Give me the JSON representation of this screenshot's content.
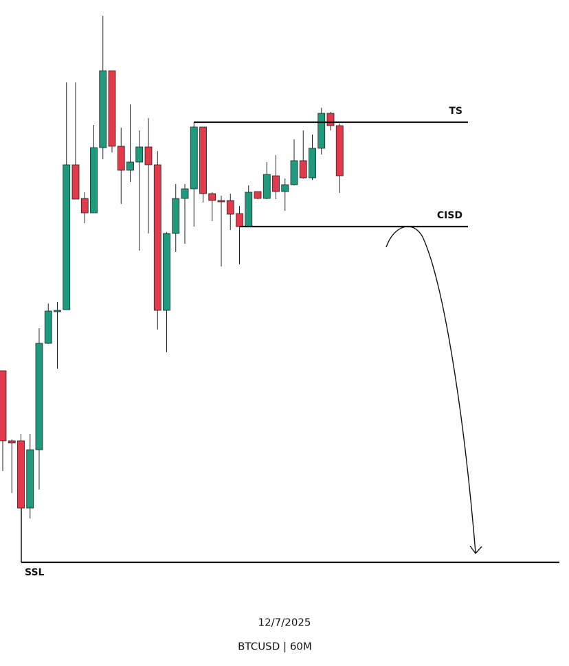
{
  "chart_data": {
    "type": "candlestick",
    "title": "12/7/2025",
    "subtitle": "BTCUSD | 60M",
    "ylim": [
      0,
      970
    ],
    "up_color": "#1f9a7c",
    "down_color": "#e23a4b",
    "open": [
      430,
      328,
      328,
      230,
      315,
      470,
      516,
      519,
      730,
      681,
      660,
      755,
      867,
      757,
      722,
      734,
      756,
      730,
      518,
      630,
      681,
      695,
      785,
      688,
      678,
      678,
      659,
      640,
      691,
      681,
      714,
      691,
      701,
      736,
      711,
      754,
      805,
      787
    ],
    "high": [
      430,
      330,
      338,
      338,
      492,
      528,
      530,
      850,
      850,
      690,
      788,
      947,
      867,
      784,
      818,
      780,
      798,
      750,
      632,
      702,
      702,
      792,
      785,
      690,
      685,
      688,
      670,
      700,
      691,
      734,
      744,
      710,
      767,
      780,
      774,
      813,
      807,
      790
    ],
    "low": [
      284,
      252,
      230,
      215,
      257,
      469,
      433,
      519,
      680,
      645,
      660,
      738,
      748,
      673,
      705,
      605,
      630,
      490,
      457,
      603,
      615,
      640,
      675,
      648,
      582,
      635,
      585,
      640,
      680,
      680,
      680,
      663,
      700,
      710,
      708,
      745,
      780,
      689
    ],
    "close": [
      328,
      325,
      230,
      315,
      470,
      517,
      518,
      730,
      680,
      660,
      755,
      867,
      757,
      722,
      734,
      756,
      730,
      518,
      630,
      681,
      695,
      785,
      688,
      678,
      676,
      658,
      640,
      690,
      681,
      716,
      691,
      701,
      736,
      711,
      754,
      805,
      787,
      714
    ],
    "levels": [
      {
        "label": "TS",
        "value": 792
      },
      {
        "label": "CISD",
        "value": 640
      },
      {
        "label": "SSL",
        "value": 151
      }
    ]
  }
}
